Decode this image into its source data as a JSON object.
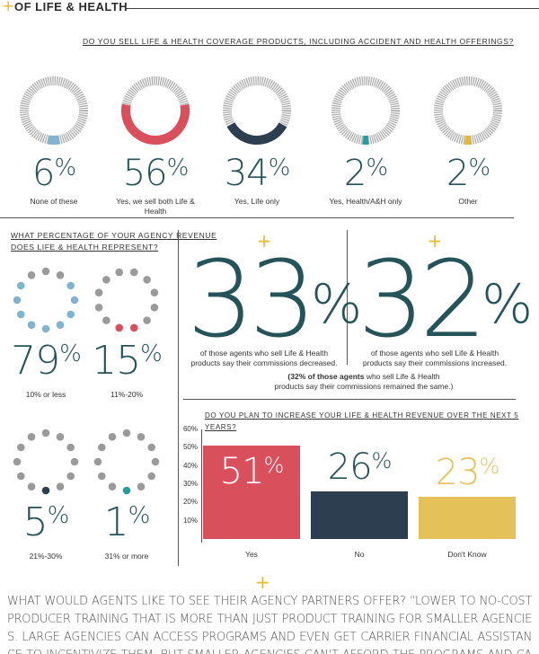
{
  "header": {
    "plus": "+",
    "title": "OF LIFE & HEALTH"
  },
  "q1": {
    "question": "DO YOU SELL LIFE & HEALTH COVERAGE PRODUCTS, INCLUDING ACCIDENT AND HEALTH OFFERINGS?",
    "items": [
      {
        "pct": "6",
        "label": "None of these",
        "value": 6,
        "color": "#7fb3cf"
      },
      {
        "pct": "56",
        "label": "Yes, we sell both Life & Health",
        "value": 56,
        "color": "#d94f5c"
      },
      {
        "pct": "34",
        "label": "Yes, Life only",
        "value": 34,
        "color": "#2c3e50"
      },
      {
        "pct": "2",
        "label": "Yes, Health/A&H only",
        "value": 2,
        "color": "#2a9aa0"
      },
      {
        "pct": "2",
        "label": "Other",
        "value": 2,
        "color": "#e5b82e"
      }
    ]
  },
  "q2": {
    "question_line1": "WHAT PERCENTAGE OF YOUR AGENCY REVENUE",
    "question_line2": "DOES LIFE & HEALTH REPRESENT?",
    "items": [
      {
        "pct": "79",
        "label": "10% or less",
        "value": 79,
        "color": "#7fb3cf"
      },
      {
        "pct": "15",
        "label": "11%-20%",
        "value": 15,
        "color": "#d94f5c"
      },
      {
        "pct": "5",
        "label": "21%-30%",
        "value": 5,
        "color": "#2c3e50"
      },
      {
        "pct": "1",
        "label": "31% or more",
        "value": 1,
        "color": "#2a9aa0"
      }
    ]
  },
  "commissions": {
    "decreased": {
      "pct": "33",
      "caption_line1": "of those agents who sell Life & Health",
      "caption_line2": "products say their commissions decreased."
    },
    "increased": {
      "pct": "32",
      "caption_line1": "of those agents who sell Life & Health",
      "caption_line2": "products say their commissions increased."
    },
    "note_bold": "(32% of those agents",
    "note_rest": " who sell Life & Health",
    "note_line2": "products say their commissions remained the same.)"
  },
  "chart_data": {
    "type": "bar",
    "title": "DO YOU PLAN TO INCREASE YOUR LIFE & HEALTH REVENUE OVER THE NEXT 5 YEARS?",
    "categories": [
      "Yes",
      "No",
      "Don't Know"
    ],
    "values": [
      51,
      26,
      23
    ],
    "value_labels": [
      "51",
      "26",
      "23"
    ],
    "colors": [
      "#d94f5c",
      "#2c3e50",
      "#e5c15a"
    ],
    "label_colors": [
      "#ffffff",
      "#24535a",
      "#e5c15a"
    ],
    "yticks": [
      "60%",
      "50%",
      "40%",
      "30%",
      "20%",
      "10%"
    ],
    "ylim": [
      0,
      60
    ],
    "grid": false
  },
  "quote": "WHAT WOULD AGENTS LIKE TO SEE THEIR AGENCY PARTNERS OFFER? “LOWER TO NO-COST PRODUCER TRAINING THAT IS MORE THAN JUST PRODUCT TRAINING FOR SMALLER AGENCIES. LARGE AGENCIES CAN ACCESS PROGRAMS AND EVEN GET CARRIER FINANCIAL ASSISTANCE TO INCENTIVIZE THEM, BUT SMALLER AGENCIES CAN'T AFFORD THE PROGRAMS AND CAN'T GET THE ASSISTANCE THEY NEED TO GROW.”",
  "percent_sign": "%",
  "plus": "+"
}
